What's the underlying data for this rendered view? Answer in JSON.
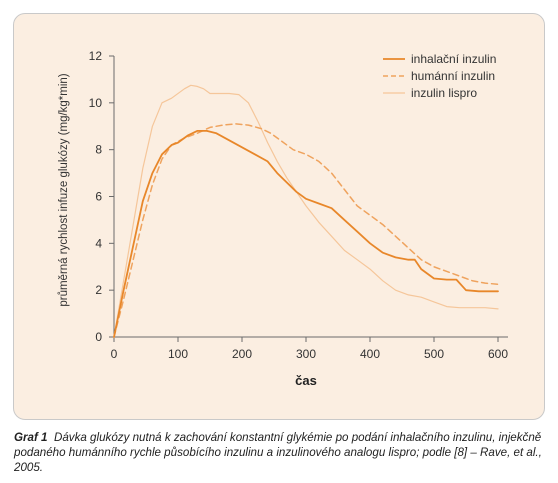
{
  "chart_data": {
    "type": "line",
    "xlabel": "čas",
    "ylabel": "průměrná rychlost infuze glukózy (mg/kg*min)",
    "xlim": [
      0,
      600
    ],
    "ylim": [
      0,
      12
    ],
    "xticks": [
      "0",
      "100",
      "200",
      "300",
      "400",
      "500",
      "600"
    ],
    "yticks": [
      "0",
      "2",
      "4",
      "6",
      "8",
      "10",
      "12"
    ],
    "grid": false,
    "legend_position": "top-right",
    "series": [
      {
        "name": "inhalační inzulin",
        "style": "solid",
        "color": "#e8872a",
        "x": [
          0,
          15,
          30,
          45,
          60,
          75,
          90,
          100,
          115,
          130,
          145,
          160,
          180,
          200,
          220,
          240,
          255,
          270,
          285,
          300,
          320,
          340,
          360,
          380,
          400,
          420,
          440,
          460,
          470,
          480,
          500,
          520,
          535,
          550,
          570,
          590,
          600
        ],
        "y": [
          0,
          2.0,
          3.9,
          5.8,
          7.0,
          7.8,
          8.2,
          8.3,
          8.6,
          8.8,
          8.8,
          8.7,
          8.4,
          8.1,
          7.8,
          7.5,
          7.0,
          6.6,
          6.2,
          5.9,
          5.7,
          5.5,
          5.0,
          4.5,
          4.0,
          3.6,
          3.4,
          3.3,
          3.3,
          2.9,
          2.5,
          2.45,
          2.45,
          2.0,
          1.95,
          1.95,
          1.95
        ]
      },
      {
        "name": "humánní inzulin",
        "style": "dashed",
        "color": "#efa35e",
        "x": [
          0,
          15,
          30,
          45,
          60,
          75,
          90,
          110,
          130,
          150,
          170,
          190,
          210,
          230,
          245,
          260,
          280,
          300,
          320,
          340,
          360,
          380,
          400,
          420,
          440,
          460,
          480,
          500,
          520,
          540,
          560,
          580,
          600
        ],
        "y": [
          0,
          1.6,
          3.3,
          5.0,
          6.5,
          7.6,
          8.2,
          8.5,
          8.7,
          8.95,
          9.05,
          9.1,
          9.05,
          8.9,
          8.7,
          8.4,
          8.0,
          7.8,
          7.5,
          7.0,
          6.3,
          5.6,
          5.2,
          4.8,
          4.3,
          3.8,
          3.3,
          3.0,
          2.8,
          2.6,
          2.4,
          2.3,
          2.25
        ]
      },
      {
        "name": "inzulin lispro",
        "style": "solid-light",
        "color": "#f5c69a",
        "x": [
          0,
          15,
          30,
          45,
          60,
          75,
          90,
          110,
          120,
          130,
          140,
          150,
          165,
          180,
          195,
          210,
          225,
          240,
          255,
          270,
          285,
          300,
          320,
          340,
          360,
          380,
          400,
          420,
          440,
          460,
          480,
          500,
          520,
          540,
          560,
          580,
          600
        ],
        "y": [
          0,
          2.4,
          4.8,
          7.2,
          9.0,
          10.0,
          10.2,
          10.6,
          10.75,
          10.7,
          10.6,
          10.4,
          10.4,
          10.4,
          10.35,
          10.0,
          9.2,
          8.3,
          7.5,
          6.8,
          6.2,
          5.6,
          4.9,
          4.3,
          3.7,
          3.3,
          2.9,
          2.4,
          2.0,
          1.8,
          1.7,
          1.5,
          1.3,
          1.25,
          1.25,
          1.25,
          1.2
        ]
      }
    ]
  },
  "caption": {
    "label": "Graf 1",
    "text": "Dávka glukózy nutná k zachování konstantní glykémie po podání inhalačního inzulinu, injekčně podaného humánního rychle působícího inzulinu a inzulinového analogu lispro; podle [8] – Rave, et al., 2005."
  }
}
